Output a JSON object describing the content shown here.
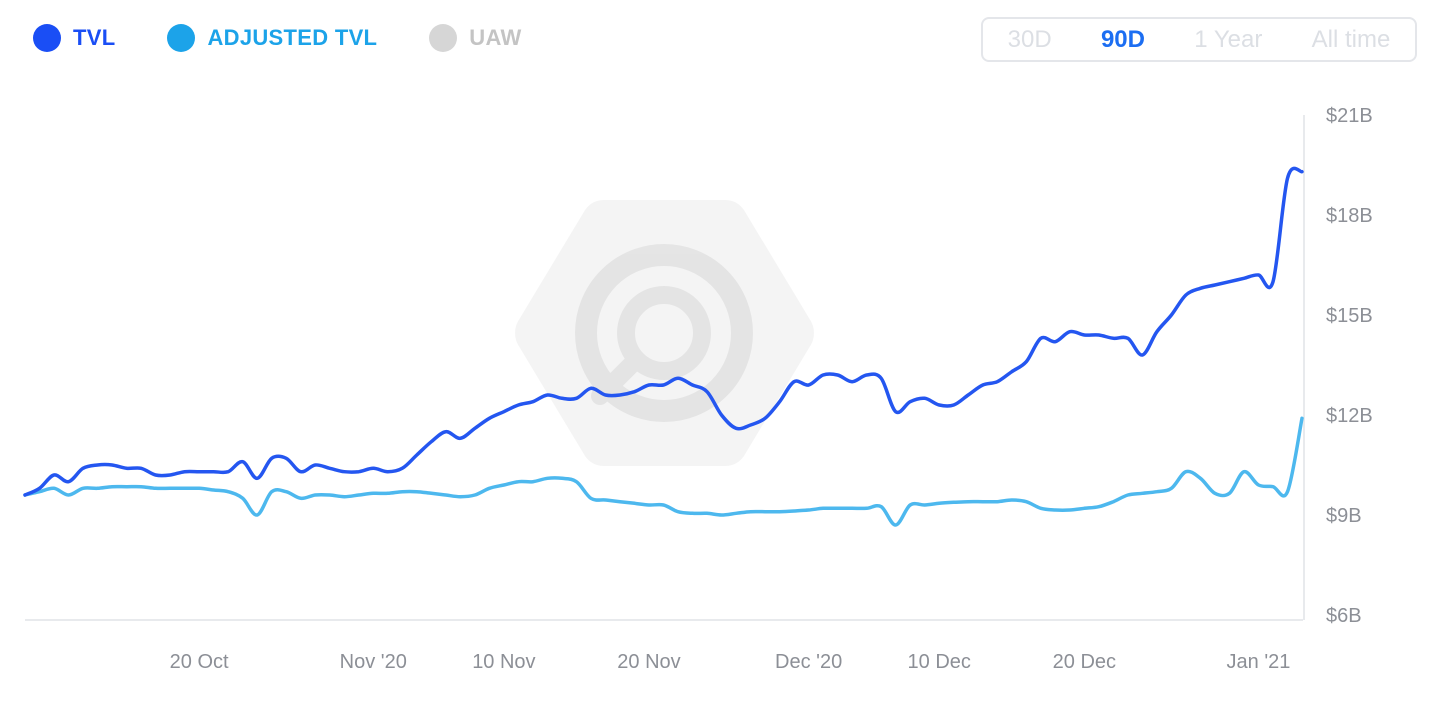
{
  "legend": [
    {
      "label": "TVL",
      "color": "#1a4ef5"
    },
    {
      "label": "ADJUSTED TVL",
      "color": "#1ca3e9"
    },
    {
      "label": "UAW",
      "color": "#d6d6d6"
    }
  ],
  "range_buttons": [
    {
      "label": "30D",
      "active": false
    },
    {
      "label": "90D",
      "active": true
    },
    {
      "label": "1 Year",
      "active": false
    },
    {
      "label": "All time",
      "active": false
    }
  ],
  "chart_data": {
    "type": "line",
    "y_ticks": [
      "$21B",
      "$18B",
      "$15B",
      "$12B",
      "$9B",
      "$6B"
    ],
    "ylim": [
      6,
      21
    ],
    "y_unit": "$B",
    "x_ticks": [
      {
        "label": "20 Oct",
        "x": 12
      },
      {
        "label": "Nov '20",
        "x": 24
      },
      {
        "label": "10 Nov",
        "x": 33
      },
      {
        "label": "20 Nov",
        "x": 43
      },
      {
        "label": "Dec '20",
        "x": 54
      },
      {
        "label": "10 Dec",
        "x": 63
      },
      {
        "label": "20 Dec",
        "x": 73
      },
      {
        "label": "Jan '21",
        "x": 85
      }
    ],
    "xlim": [
      0,
      88
    ],
    "grid": false,
    "legend_position": "top-left",
    "series": [
      {
        "name": "TVL",
        "color": "#2456f0",
        "values": [
          [
            0,
            9.6
          ],
          [
            1,
            9.8
          ],
          [
            2,
            10.2
          ],
          [
            3,
            10.0
          ],
          [
            4,
            10.4
          ],
          [
            5,
            10.5
          ],
          [
            6,
            10.5
          ],
          [
            7,
            10.4
          ],
          [
            8,
            10.4
          ],
          [
            9,
            10.2
          ],
          [
            10,
            10.2
          ],
          [
            11,
            10.3
          ],
          [
            12,
            10.3
          ],
          [
            13,
            10.3
          ],
          [
            14,
            10.3
          ],
          [
            15,
            10.6
          ],
          [
            16,
            10.1
          ],
          [
            17,
            10.7
          ],
          [
            18,
            10.7
          ],
          [
            19,
            10.3
          ],
          [
            20,
            10.5
          ],
          [
            21,
            10.4
          ],
          [
            22,
            10.3
          ],
          [
            23,
            10.3
          ],
          [
            24,
            10.4
          ],
          [
            25,
            10.3
          ],
          [
            26,
            10.4
          ],
          [
            27,
            10.8
          ],
          [
            28,
            11.2
          ],
          [
            29,
            11.5
          ],
          [
            30,
            11.3
          ],
          [
            31,
            11.6
          ],
          [
            32,
            11.9
          ],
          [
            33,
            12.1
          ],
          [
            34,
            12.3
          ],
          [
            35,
            12.4
          ],
          [
            36,
            12.6
          ],
          [
            37,
            12.5
          ],
          [
            38,
            12.5
          ],
          [
            39,
            12.8
          ],
          [
            40,
            12.6
          ],
          [
            41,
            12.6
          ],
          [
            42,
            12.7
          ],
          [
            43,
            12.9
          ],
          [
            44,
            12.9
          ],
          [
            45,
            13.1
          ],
          [
            46,
            12.9
          ],
          [
            47,
            12.7
          ],
          [
            48,
            12.0
          ],
          [
            49,
            11.6
          ],
          [
            50,
            11.7
          ],
          [
            51,
            11.9
          ],
          [
            52,
            12.4
          ],
          [
            53,
            13.0
          ],
          [
            54,
            12.9
          ],
          [
            55,
            13.2
          ],
          [
            56,
            13.2
          ],
          [
            57,
            13.0
          ],
          [
            58,
            13.2
          ],
          [
            59,
            13.1
          ],
          [
            60,
            12.1
          ],
          [
            61,
            12.4
          ],
          [
            62,
            12.5
          ],
          [
            63,
            12.3
          ],
          [
            64,
            12.3
          ],
          [
            65,
            12.6
          ],
          [
            66,
            12.9
          ],
          [
            67,
            13.0
          ],
          [
            68,
            13.3
          ],
          [
            69,
            13.6
          ],
          [
            70,
            14.3
          ],
          [
            71,
            14.2
          ],
          [
            72,
            14.5
          ],
          [
            73,
            14.4
          ],
          [
            74,
            14.4
          ],
          [
            75,
            14.3
          ],
          [
            76,
            14.3
          ],
          [
            77,
            13.8
          ],
          [
            78,
            14.5
          ],
          [
            79,
            15.0
          ],
          [
            80,
            15.6
          ],
          [
            81,
            15.8
          ],
          [
            82,
            15.9
          ],
          [
            83,
            16.0
          ],
          [
            84,
            16.1
          ],
          [
            85,
            16.2
          ],
          [
            86,
            16.0
          ],
          [
            87,
            19.1
          ],
          [
            88,
            19.3
          ]
        ]
      },
      {
        "name": "ADJUSTED TVL",
        "color": "#4db8ee",
        "values": [
          [
            0,
            9.6
          ],
          [
            1,
            9.7
          ],
          [
            2,
            9.8
          ],
          [
            3,
            9.6
          ],
          [
            4,
            9.8
          ],
          [
            5,
            9.8
          ],
          [
            6,
            9.85
          ],
          [
            7,
            9.85
          ],
          [
            8,
            9.85
          ],
          [
            9,
            9.8
          ],
          [
            10,
            9.8
          ],
          [
            11,
            9.8
          ],
          [
            12,
            9.8
          ],
          [
            13,
            9.75
          ],
          [
            14,
            9.7
          ],
          [
            15,
            9.5
          ],
          [
            16,
            9.0
          ],
          [
            17,
            9.7
          ],
          [
            18,
            9.7
          ],
          [
            19,
            9.5
          ],
          [
            20,
            9.6
          ],
          [
            21,
            9.6
          ],
          [
            22,
            9.55
          ],
          [
            23,
            9.6
          ],
          [
            24,
            9.65
          ],
          [
            25,
            9.65
          ],
          [
            26,
            9.7
          ],
          [
            27,
            9.7
          ],
          [
            28,
            9.65
          ],
          [
            29,
            9.6
          ],
          [
            30,
            9.55
          ],
          [
            31,
            9.6
          ],
          [
            32,
            9.8
          ],
          [
            33,
            9.9
          ],
          [
            34,
            10.0
          ],
          [
            35,
            10.0
          ],
          [
            36,
            10.1
          ],
          [
            37,
            10.1
          ],
          [
            38,
            10.0
          ],
          [
            39,
            9.5
          ],
          [
            40,
            9.45
          ],
          [
            41,
            9.4
          ],
          [
            42,
            9.35
          ],
          [
            43,
            9.3
          ],
          [
            44,
            9.3
          ],
          [
            45,
            9.1
          ],
          [
            46,
            9.05
          ],
          [
            47,
            9.05
          ],
          [
            48,
            9.0
          ],
          [
            49,
            9.05
          ],
          [
            50,
            9.1
          ],
          [
            51,
            9.1
          ],
          [
            52,
            9.1
          ],
          [
            53,
            9.12
          ],
          [
            54,
            9.15
          ],
          [
            55,
            9.2
          ],
          [
            56,
            9.2
          ],
          [
            57,
            9.2
          ],
          [
            58,
            9.2
          ],
          [
            59,
            9.25
          ],
          [
            60,
            8.7
          ],
          [
            61,
            9.3
          ],
          [
            62,
            9.3
          ],
          [
            63,
            9.35
          ],
          [
            64,
            9.38
          ],
          [
            65,
            9.4
          ],
          [
            66,
            9.4
          ],
          [
            67,
            9.4
          ],
          [
            68,
            9.45
          ],
          [
            69,
            9.4
          ],
          [
            70,
            9.2
          ],
          [
            71,
            9.15
          ],
          [
            72,
            9.15
          ],
          [
            73,
            9.2
          ],
          [
            74,
            9.25
          ],
          [
            75,
            9.4
          ],
          [
            76,
            9.6
          ],
          [
            77,
            9.65
          ],
          [
            78,
            9.7
          ],
          [
            79,
            9.8
          ],
          [
            80,
            10.3
          ],
          [
            81,
            10.1
          ],
          [
            82,
            9.65
          ],
          [
            83,
            9.65
          ],
          [
            84,
            10.3
          ],
          [
            85,
            9.9
          ],
          [
            86,
            9.85
          ],
          [
            87,
            9.7
          ],
          [
            88,
            11.9
          ]
        ]
      }
    ]
  }
}
